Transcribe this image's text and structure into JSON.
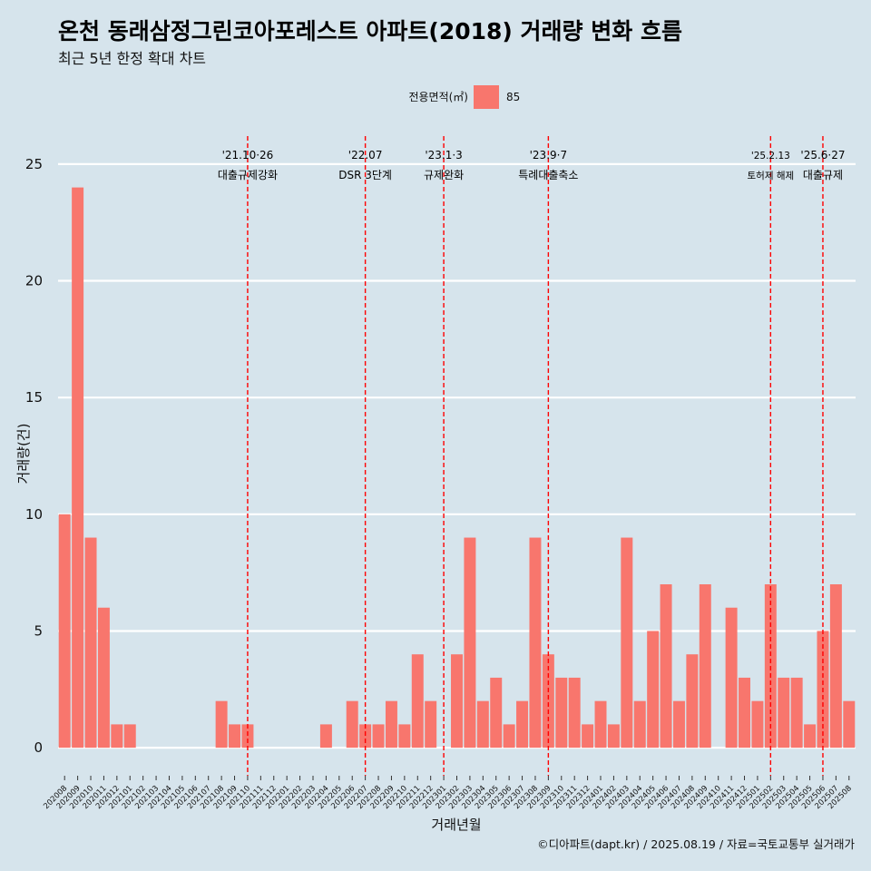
{
  "chart_data": {
    "type": "bar",
    "title": "온천 동래삼정그린코아포레스트 아파트(2018) 거래량 변화 흐름",
    "subtitle": "최근 5년 한정 확대 차트",
    "xlabel": "거래년월",
    "ylabel": "거래량(건)",
    "caption": "©디아파트(dapt.kr) / 2025.08.19 / 자료=국토교통부 실거래가",
    "ylim": [
      -1.2,
      26.2
    ],
    "yticks": [
      "0",
      "5",
      "10",
      "15",
      "20",
      "25"
    ],
    "grid": true,
    "legend": {
      "title": "전용면적(㎡)",
      "position": "top",
      "entries": [
        "85"
      ]
    },
    "series": [
      {
        "name": "85",
        "color": "#F8766D",
        "values": [
          10,
          24,
          9,
          6,
          1,
          1,
          0,
          0,
          0,
          0,
          0,
          0,
          2,
          1,
          1,
          0,
          0,
          0,
          0,
          0,
          1,
          0,
          2,
          1,
          1,
          2,
          1,
          4,
          2,
          0,
          4,
          9,
          2,
          3,
          1,
          2,
          9,
          4,
          3,
          3,
          1,
          2,
          1,
          9,
          2,
          5,
          7,
          2,
          4,
          7,
          0,
          6,
          3,
          2,
          7,
          3,
          3,
          1,
          5,
          7,
          2
        ]
      }
    ],
    "categories": [
      "202008",
      "202009",
      "202010",
      "202011",
      "202012",
      "202101",
      "202102",
      "202103",
      "202104",
      "202105",
      "202106",
      "202107",
      "202108",
      "202109",
      "202110",
      "202111",
      "202112",
      "202201",
      "202202",
      "202203",
      "202204",
      "202205",
      "202206",
      "202207",
      "202208",
      "202209",
      "202210",
      "202211",
      "202212",
      "202301",
      "202302",
      "202303",
      "202304",
      "202305",
      "202306",
      "202307",
      "202308",
      "202309",
      "202310",
      "202311",
      "202312",
      "202401",
      "202402",
      "202403",
      "202404",
      "202405",
      "202406",
      "202407",
      "202408",
      "202409",
      "202410",
      "202411",
      "202412",
      "202501",
      "202502",
      "202503",
      "202504",
      "202505",
      "202506",
      "202507",
      "202508"
    ],
    "annotations": [
      {
        "at": "202110",
        "date": "'21.10·26",
        "label": "대출규제강화",
        "size": "normal"
      },
      {
        "at": "202207",
        "date": "'22.07",
        "label": "DSR 3단계",
        "size": "normal"
      },
      {
        "at": "202301",
        "date": "'23.1·3",
        "label": "규제완화",
        "size": "normal"
      },
      {
        "at": "202309",
        "date": "'23.9·7",
        "label": "특례대출축소",
        "size": "normal"
      },
      {
        "at": "202502",
        "date": "'25.2.13",
        "label": "토허제 해제",
        "size": "small"
      },
      {
        "at": "202506",
        "date": "'25.6·27",
        "label": "대출규제",
        "size": "normal"
      }
    ]
  }
}
